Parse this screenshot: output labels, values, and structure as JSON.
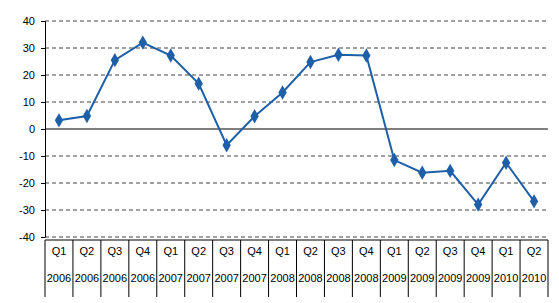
{
  "chart_data": {
    "type": "line",
    "categories": [
      "Q1 2006",
      "Q2 2006",
      "Q3 2006",
      "Q4 2006",
      "Q1 2007",
      "Q2 2007",
      "Q3 2007",
      "Q4 2007",
      "Q1 2008",
      "Q2 2008",
      "Q3 2008",
      "Q4 2008",
      "Q1 2009",
      "Q2 2009",
      "Q3 2009",
      "Q4 2009",
      "Q1 2010",
      "Q2 2010"
    ],
    "values": [
      3.2,
      4.8,
      25.5,
      32,
      27.2,
      16.8,
      -6,
      4.7,
      13.5,
      24.8,
      27.5,
      27.2,
      -11.5,
      -16.2,
      -15.5,
      -28,
      -12.5,
      -26.8
    ],
    "color": "#1f5fa8",
    "marker": "diamond",
    "ylim": [
      -40,
      40
    ],
    "yticks": [
      -40,
      -30,
      -20,
      -10,
      0,
      10,
      20,
      30,
      40
    ],
    "grid": true
  }
}
